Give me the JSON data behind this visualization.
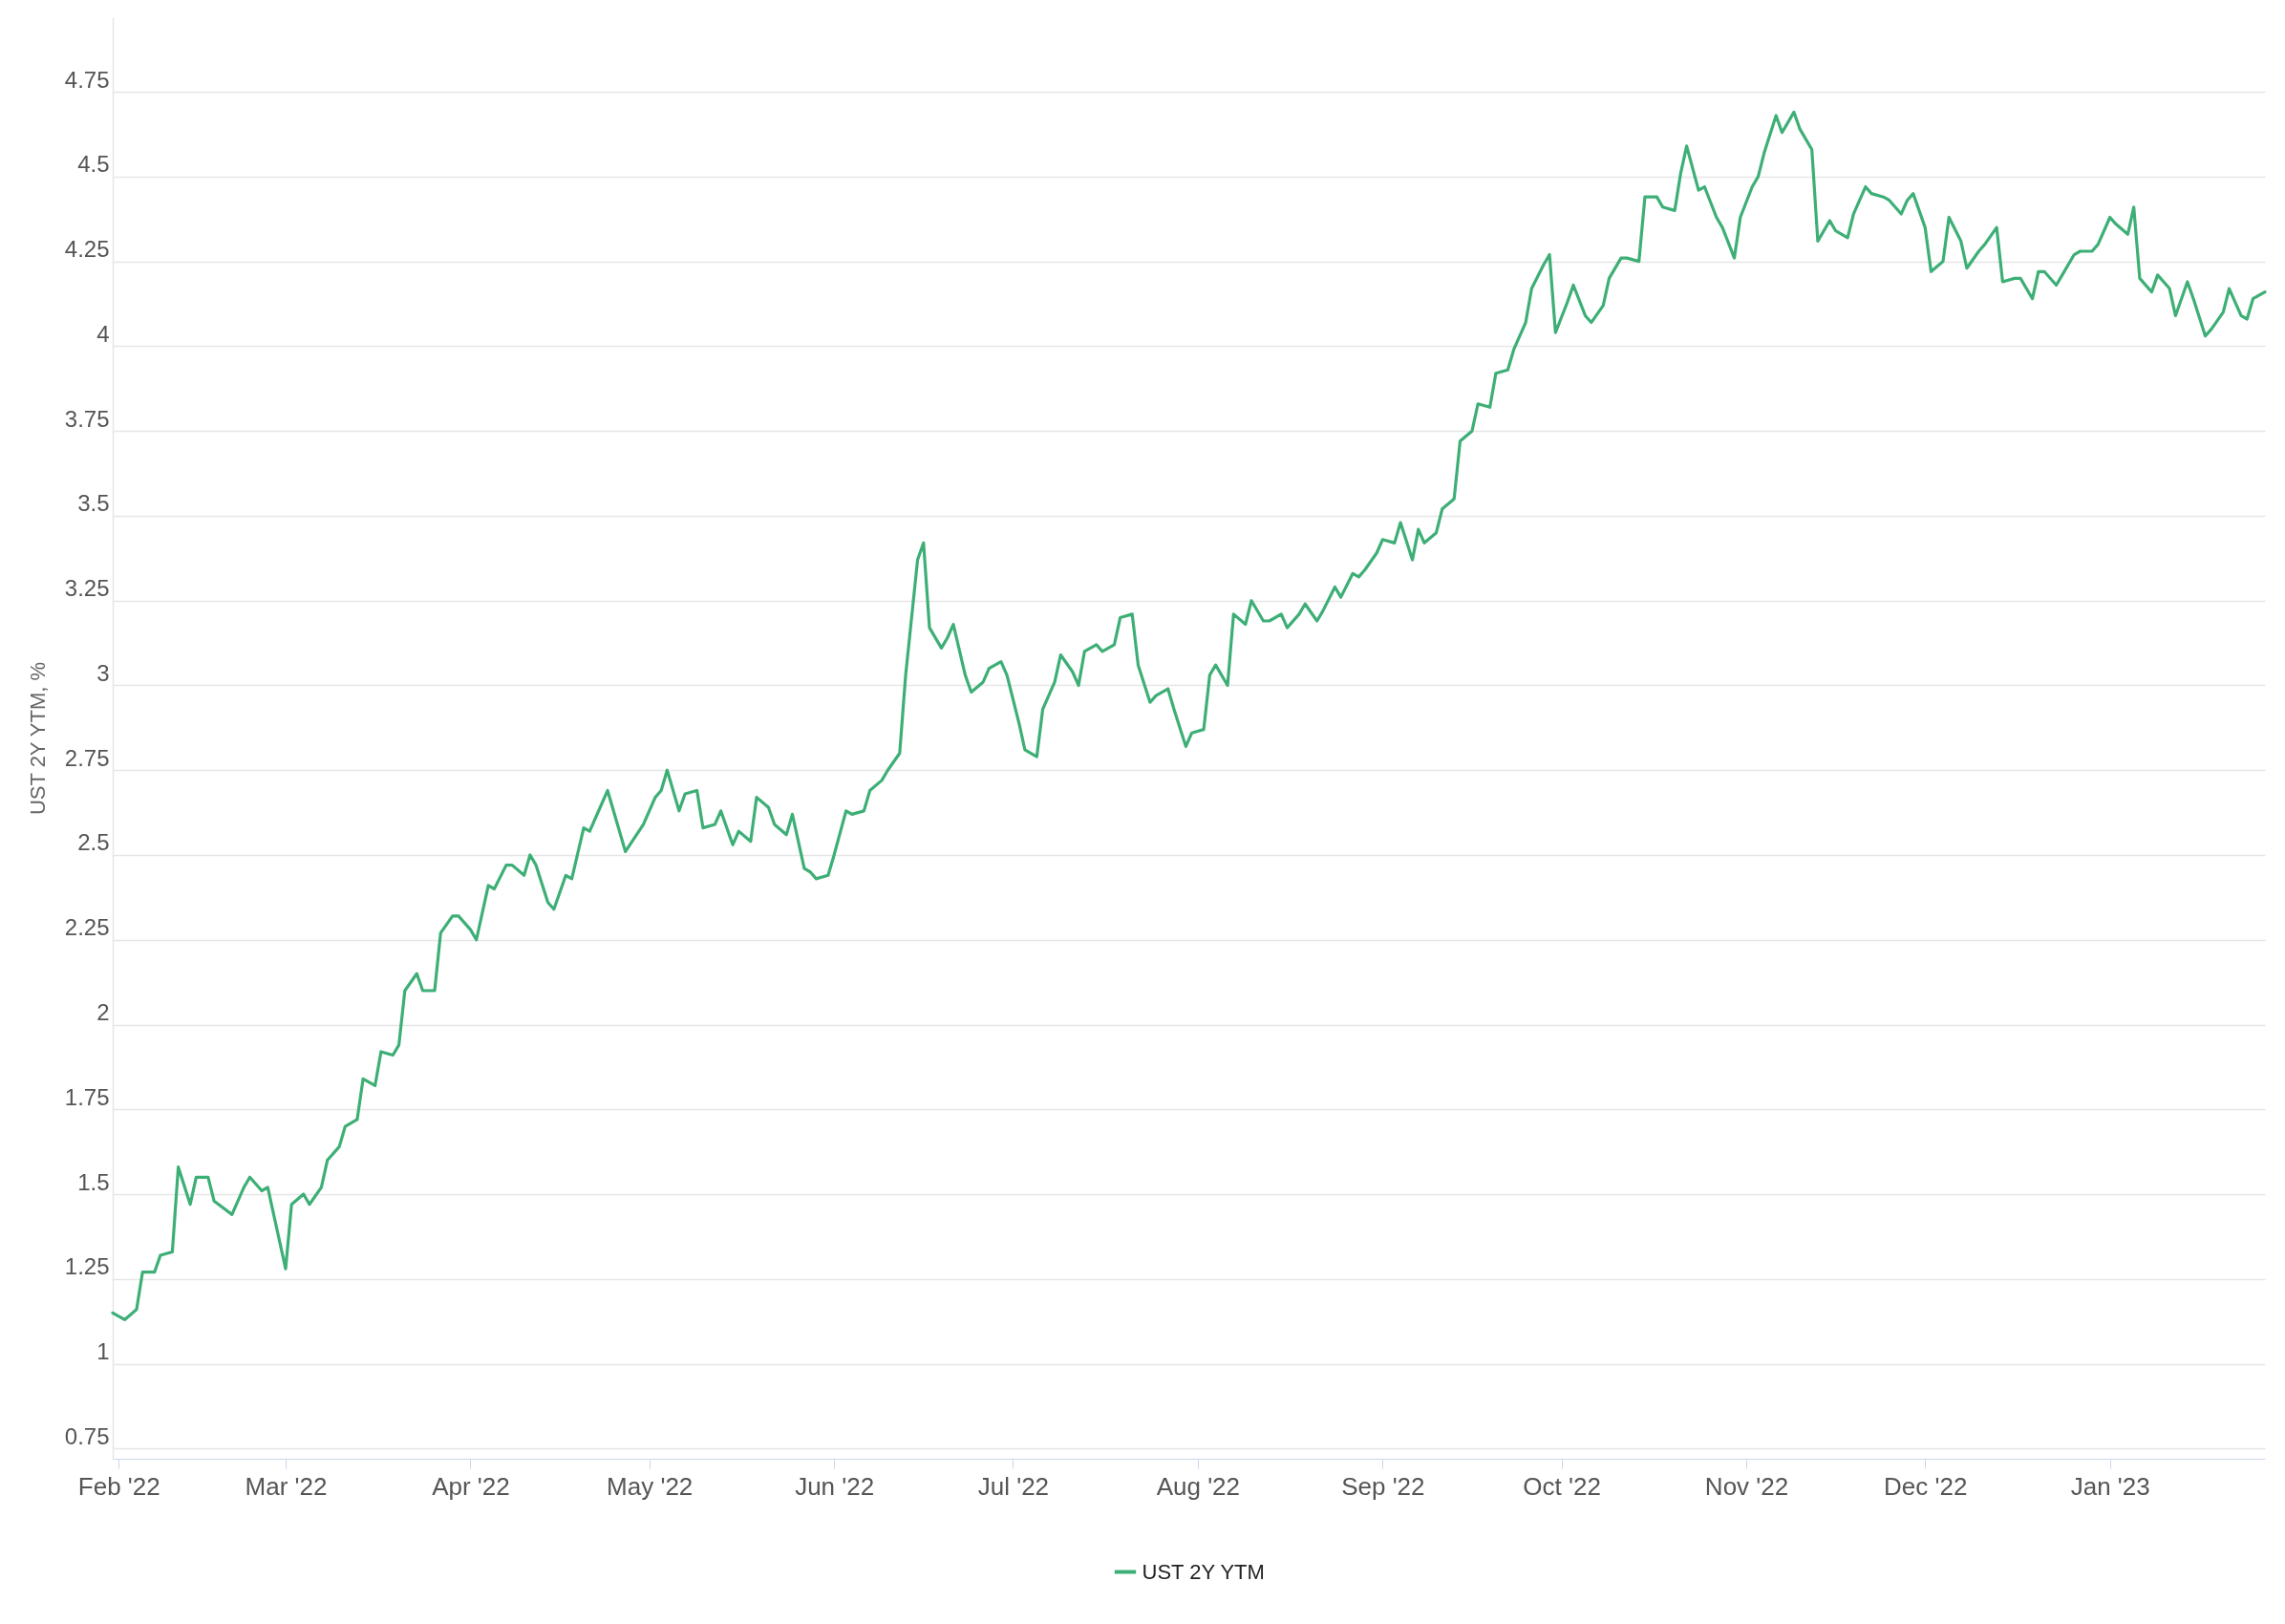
{
  "chart_data": {
    "type": "line",
    "ylabel": "UST 2Y YTM, %",
    "xlim": [
      "2022-01-31",
      "2023-01-27"
    ],
    "ylim": [
      0.72,
      4.97
    ],
    "yticks": [
      0.75,
      1,
      1.25,
      1.5,
      1.75,
      2,
      2.25,
      2.5,
      2.75,
      3,
      3.25,
      3.5,
      3.75,
      4,
      4.25,
      4.5,
      4.75
    ],
    "xticks": [
      {
        "value": "2022-02-01",
        "label": "Feb '22"
      },
      {
        "value": "2022-03-01",
        "label": "Mar '22"
      },
      {
        "value": "2022-04-01",
        "label": "Apr '22"
      },
      {
        "value": "2022-05-01",
        "label": "May '22"
      },
      {
        "value": "2022-06-01",
        "label": "Jun '22"
      },
      {
        "value": "2022-07-01",
        "label": "Jul '22"
      },
      {
        "value": "2022-08-01",
        "label": "Aug '22"
      },
      {
        "value": "2022-09-01",
        "label": "Sep '22"
      },
      {
        "value": "2022-10-01",
        "label": "Oct '22"
      },
      {
        "value": "2022-11-01",
        "label": "Nov '22"
      },
      {
        "value": "2022-12-01",
        "label": "Dec '22"
      },
      {
        "value": "2023-01-01",
        "label": "Jan '23"
      }
    ],
    "grid": "y",
    "legend": "bottom",
    "marker": "none",
    "line_style": "solid",
    "x": [
      "2022-01-31",
      "2022-02-02",
      "2022-02-04",
      "2022-02-05",
      "2022-02-07",
      "2022-02-08",
      "2022-02-10",
      "2022-02-11",
      "2022-02-13",
      "2022-02-14",
      "2022-02-16",
      "2022-02-17",
      "2022-02-20",
      "2022-02-22",
      "2022-02-23",
      "2022-02-25",
      "2022-02-26",
      "2022-03-01",
      "2022-03-02",
      "2022-03-04",
      "2022-03-05",
      "2022-03-07",
      "2022-03-08",
      "2022-03-10",
      "2022-03-11",
      "2022-03-13",
      "2022-03-14",
      "2022-03-16",
      "2022-03-17",
      "2022-03-19",
      "2022-03-20",
      "2022-03-21",
      "2022-03-23",
      "2022-03-24",
      "2022-03-26",
      "2022-03-27",
      "2022-03-29",
      "2022-03-30",
      "2022-04-01",
      "2022-04-02",
      "2022-04-04",
      "2022-04-05",
      "2022-04-07",
      "2022-04-08",
      "2022-04-10",
      "2022-04-11",
      "2022-04-12",
      "2022-04-14",
      "2022-04-15",
      "2022-04-17",
      "2022-04-18",
      "2022-04-20",
      "2022-04-21",
      "2022-04-23",
      "2022-04-24",
      "2022-04-27",
      "2022-04-30",
      "2022-05-02",
      "2022-05-03",
      "2022-05-04",
      "2022-05-06",
      "2022-05-07",
      "2022-05-09",
      "2022-05-10",
      "2022-05-12",
      "2022-05-13",
      "2022-05-15",
      "2022-05-16",
      "2022-05-18",
      "2022-05-19",
      "2022-05-21",
      "2022-05-22",
      "2022-05-24",
      "2022-05-25",
      "2022-05-27",
      "2022-05-28",
      "2022-05-29",
      "2022-05-31",
      "2022-06-01",
      "2022-06-03",
      "2022-06-04",
      "2022-06-06",
      "2022-06-07",
      "2022-06-09",
      "2022-06-10",
      "2022-06-12",
      "2022-06-13",
      "2022-06-15",
      "2022-06-16",
      "2022-06-17",
      "2022-06-19",
      "2022-06-20",
      "2022-06-21",
      "2022-06-23",
      "2022-06-24",
      "2022-06-26",
      "2022-06-27",
      "2022-06-29",
      "2022-06-30",
      "2022-07-02",
      "2022-07-03",
      "2022-07-05",
      "2022-07-06",
      "2022-07-08",
      "2022-07-09",
      "2022-07-11",
      "2022-07-12",
      "2022-07-13",
      "2022-07-15",
      "2022-07-16",
      "2022-07-18",
      "2022-07-19",
      "2022-07-21",
      "2022-07-22",
      "2022-07-24",
      "2022-07-25",
      "2022-07-27",
      "2022-07-28",
      "2022-07-30",
      "2022-07-31",
      "2022-08-02",
      "2022-08-03",
      "2022-08-04",
      "2022-08-06",
      "2022-08-07",
      "2022-08-09",
      "2022-08-10",
      "2022-08-12",
      "2022-08-13",
      "2022-08-15",
      "2022-08-16",
      "2022-08-18",
      "2022-08-19",
      "2022-08-21",
      "2022-08-22",
      "2022-08-24",
      "2022-08-25",
      "2022-08-27",
      "2022-08-28",
      "2022-08-29",
      "2022-08-31",
      "2022-09-01",
      "2022-09-03",
      "2022-09-04",
      "2022-09-06",
      "2022-09-07",
      "2022-09-08",
      "2022-09-10",
      "2022-09-11",
      "2022-09-13",
      "2022-09-14",
      "2022-09-16",
      "2022-09-17",
      "2022-09-19",
      "2022-09-20",
      "2022-09-22",
      "2022-09-23",
      "2022-09-25",
      "2022-09-26",
      "2022-09-28",
      "2022-09-29",
      "2022-09-30",
      "2022-10-02",
      "2022-10-03",
      "2022-10-05",
      "2022-10-06",
      "2022-10-08",
      "2022-10-09",
      "2022-10-11",
      "2022-10-12",
      "2022-10-14",
      "2022-10-15",
      "2022-10-17",
      "2022-10-18",
      "2022-10-20",
      "2022-10-21",
      "2022-10-22",
      "2022-10-24",
      "2022-10-25",
      "2022-10-27",
      "2022-10-28",
      "2022-10-30",
      "2022-10-31",
      "2022-11-02",
      "2022-11-03",
      "2022-11-04",
      "2022-11-06",
      "2022-11-07",
      "2022-11-09",
      "2022-11-10",
      "2022-11-12",
      "2022-11-13",
      "2022-11-15",
      "2022-11-16",
      "2022-11-18",
      "2022-11-19",
      "2022-11-21",
      "2022-11-22",
      "2022-11-24",
      "2022-11-25",
      "2022-11-27",
      "2022-11-28",
      "2022-11-29",
      "2022-12-01",
      "2022-12-02",
      "2022-12-04",
      "2022-12-05",
      "2022-12-07",
      "2022-12-08",
      "2022-12-10",
      "2022-12-11",
      "2022-12-13",
      "2022-12-14",
      "2022-12-16",
      "2022-12-17",
      "2022-12-19",
      "2022-12-20",
      "2022-12-21",
      "2022-12-23",
      "2022-12-24",
      "2022-12-26",
      "2022-12-27",
      "2022-12-29",
      "2022-12-30",
      "2023-01-01",
      "2023-01-02",
      "2023-01-04",
      "2023-01-05",
      "2023-01-06",
      "2023-01-08",
      "2023-01-09",
      "2023-01-11",
      "2023-01-12",
      "2023-01-14",
      "2023-01-15",
      "2023-01-17",
      "2023-01-18",
      "2023-01-20",
      "2023-01-21",
      "2023-01-23",
      "2023-01-24",
      "2023-01-25",
      "2023-01-27"
    ],
    "series": [
      {
        "name": "UST 2Y YTM",
        "color": "#3daf76",
        "values": [
          1.15,
          1.13,
          1.16,
          1.27,
          1.27,
          1.32,
          1.33,
          1.58,
          1.47,
          1.55,
          1.55,
          1.48,
          1.44,
          1.52,
          1.55,
          1.51,
          1.52,
          1.28,
          1.47,
          1.5,
          1.47,
          1.52,
          1.6,
          1.64,
          1.7,
          1.72,
          1.84,
          1.82,
          1.92,
          1.91,
          1.94,
          2.1,
          2.15,
          2.1,
          2.1,
          2.27,
          2.32,
          2.32,
          2.28,
          2.25,
          2.41,
          2.4,
          2.47,
          2.47,
          2.44,
          2.5,
          2.47,
          2.36,
          2.34,
          2.44,
          2.43,
          2.58,
          2.57,
          2.65,
          2.69,
          2.51,
          2.59,
          2.67,
          2.69,
          2.75,
          2.63,
          2.68,
          2.69,
          2.58,
          2.59,
          2.63,
          2.53,
          2.57,
          2.54,
          2.67,
          2.64,
          2.59,
          2.56,
          2.62,
          2.46,
          2.45,
          2.43,
          2.44,
          2.5,
          2.63,
          2.62,
          2.63,
          2.69,
          2.72,
          2.75,
          2.8,
          3.03,
          3.37,
          3.42,
          3.17,
          3.11,
          3.14,
          3.18,
          3.03,
          2.98,
          3.01,
          3.05,
          3.07,
          3.03,
          2.89,
          2.81,
          2.79,
          2.93,
          3.01,
          3.09,
          3.04,
          3.0,
          3.1,
          3.12,
          3.1,
          3.12,
          3.2,
          3.21,
          3.06,
          2.95,
          2.97,
          2.99,
          2.93,
          2.82,
          2.86,
          2.87,
          3.03,
          3.06,
          3.0,
          3.21,
          3.18,
          3.25,
          3.19,
          3.19,
          3.21,
          3.17,
          3.21,
          3.24,
          3.19,
          3.22,
          3.29,
          3.26,
          3.33,
          3.32,
          3.34,
          3.39,
          3.43,
          3.42,
          3.48,
          3.37,
          3.46,
          3.42,
          3.45,
          3.52,
          3.55,
          3.72,
          3.75,
          3.83,
          3.82,
          3.92,
          3.93,
          3.99,
          4.07,
          4.17,
          4.24,
          4.27,
          4.04,
          4.13,
          4.18,
          4.09,
          4.07,
          4.12,
          4.2,
          4.26,
          4.26,
          4.25,
          4.44,
          4.44,
          4.41,
          4.4,
          4.51,
          4.59,
          4.46,
          4.47,
          4.38,
          4.35,
          4.26,
          4.38,
          4.47,
          4.5,
          4.57,
          4.68,
          4.63,
          4.69,
          4.64,
          4.58,
          4.31,
          4.37,
          4.34,
          4.32,
          4.39,
          4.47,
          4.45,
          4.44,
          4.43,
          4.39,
          4.43,
          4.45,
          4.35,
          4.22,
          4.25,
          4.38,
          4.31,
          4.23,
          4.28,
          4.3,
          4.35,
          4.19,
          4.2,
          4.2,
          4.14,
          4.22,
          4.22,
          4.18,
          4.21,
          4.27,
          4.28,
          4.28,
          4.3,
          4.38,
          4.36,
          4.33,
          4.41,
          4.2,
          4.16,
          4.21,
          4.17,
          4.09,
          4.19,
          4.14,
          4.03,
          4.05,
          4.1,
          4.17,
          4.09,
          4.08,
          4.14,
          4.16
        ]
      }
    ]
  }
}
